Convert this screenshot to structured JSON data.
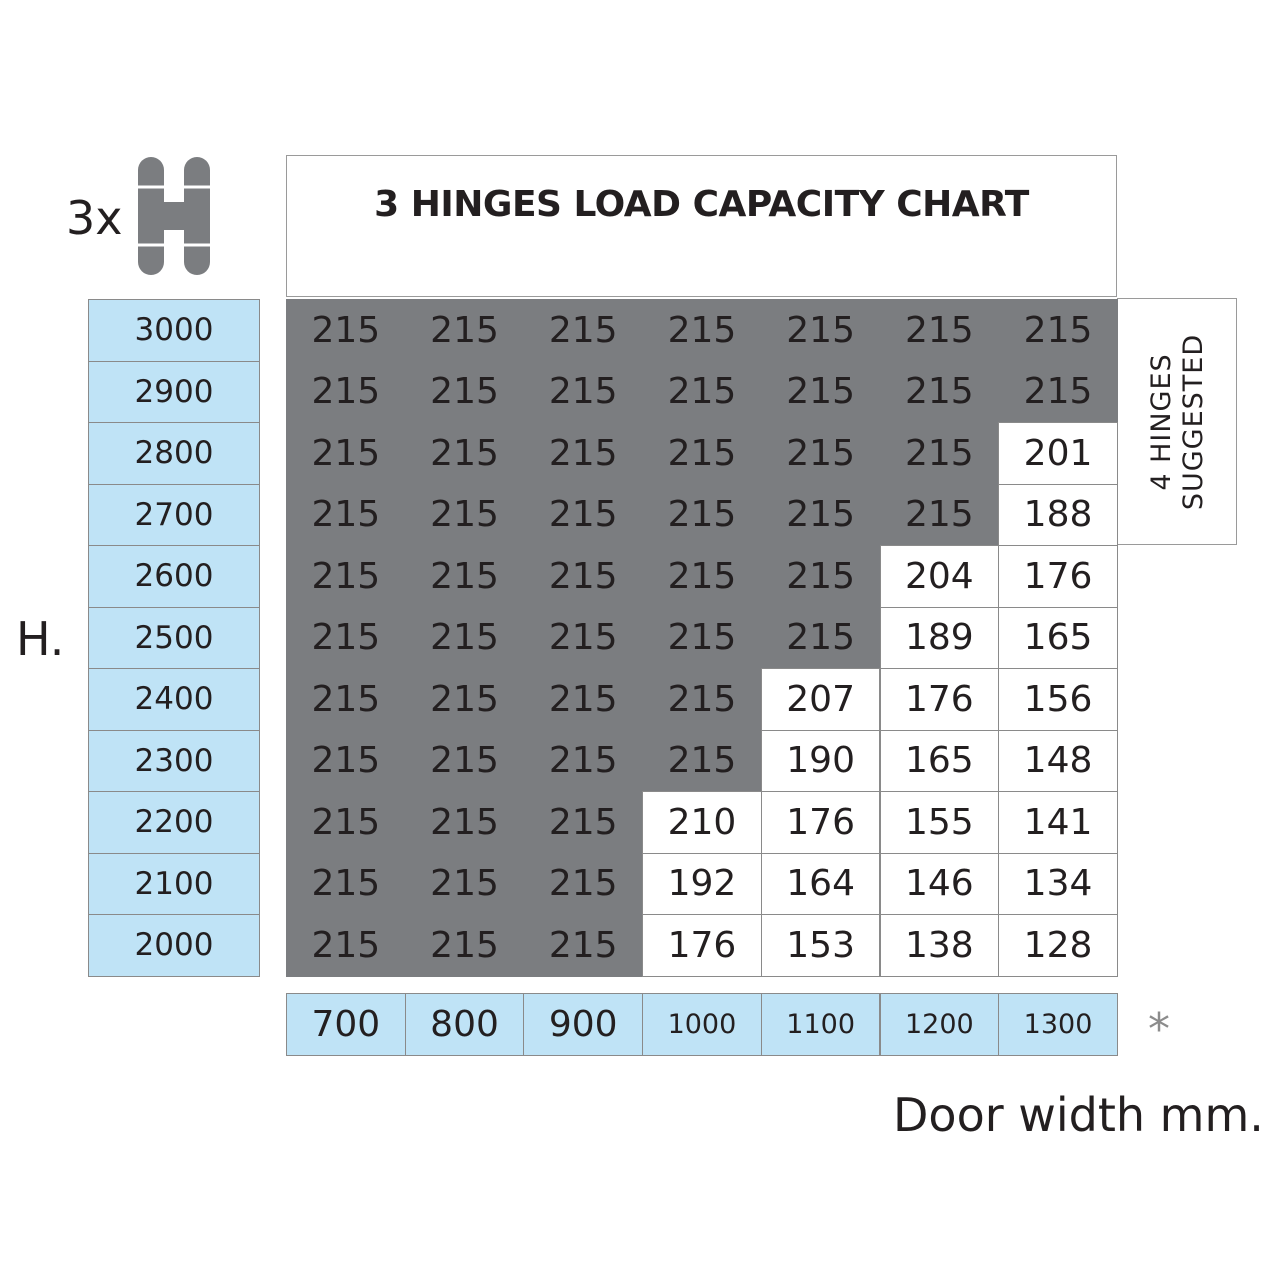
{
  "header": {
    "badge_label": "3x",
    "title": "3 HINGES LOAD CAPACITY CHART",
    "side_note_line1": "4 HINGES",
    "side_note_line2": "SUGGESTED"
  },
  "axes": {
    "y_label": "H.",
    "x_label": "Door width mm.",
    "footnote_mark": "*"
  },
  "colors": {
    "header_blue": "#bfe3f6",
    "shaded_grey": "#7b7d80",
    "border_grey": "#8a8a8a",
    "icon_grey": "#7b7d80"
  },
  "icons": {
    "hinge": "hinge-icon"
  },
  "chart_data": {
    "type": "table",
    "title": "3 HINGES LOAD CAPACITY CHART",
    "row_label": "H.",
    "column_label": "Door width mm.",
    "rows": [
      "3000",
      "2900",
      "2800",
      "2700",
      "2600",
      "2500",
      "2400",
      "2300",
      "2200",
      "2100",
      "2000"
    ],
    "columns": [
      "700",
      "800",
      "900",
      "1000",
      "1100",
      "1200",
      "1300"
    ],
    "values": [
      [
        "215",
        "215",
        "215",
        "215",
        "215",
        "215",
        "215"
      ],
      [
        "215",
        "215",
        "215",
        "215",
        "215",
        "215",
        "215"
      ],
      [
        "215",
        "215",
        "215",
        "215",
        "215",
        "215",
        "201"
      ],
      [
        "215",
        "215",
        "215",
        "215",
        "215",
        "215",
        "188"
      ],
      [
        "215",
        "215",
        "215",
        "215",
        "215",
        "204",
        "176"
      ],
      [
        "215",
        "215",
        "215",
        "215",
        "215",
        "189",
        "165"
      ],
      [
        "215",
        "215",
        "215",
        "215",
        "207",
        "176",
        "156"
      ],
      [
        "215",
        "215",
        "215",
        "215",
        "190",
        "165",
        "148"
      ],
      [
        "215",
        "215",
        "215",
        "210",
        "176",
        "155",
        "141"
      ],
      [
        "215",
        "215",
        "215",
        "192",
        "164",
        "146",
        "134"
      ],
      [
        "215",
        "215",
        "215",
        "176",
        "153",
        "138",
        "128"
      ]
    ],
    "shaded": [
      [
        1,
        1,
        1,
        1,
        1,
        1,
        1
      ],
      [
        1,
        1,
        1,
        1,
        1,
        1,
        1
      ],
      [
        1,
        1,
        1,
        1,
        1,
        1,
        0
      ],
      [
        1,
        1,
        1,
        1,
        1,
        1,
        0
      ],
      [
        1,
        1,
        1,
        1,
        1,
        0,
        0
      ],
      [
        1,
        1,
        1,
        1,
        1,
        0,
        0
      ],
      [
        1,
        1,
        1,
        1,
        0,
        0,
        0
      ],
      [
        1,
        1,
        1,
        1,
        0,
        0,
        0
      ],
      [
        1,
        1,
        1,
        0,
        0,
        0,
        0
      ],
      [
        1,
        1,
        1,
        0,
        0,
        0,
        0
      ],
      [
        1,
        1,
        1,
        0,
        0,
        0,
        0
      ]
    ]
  }
}
